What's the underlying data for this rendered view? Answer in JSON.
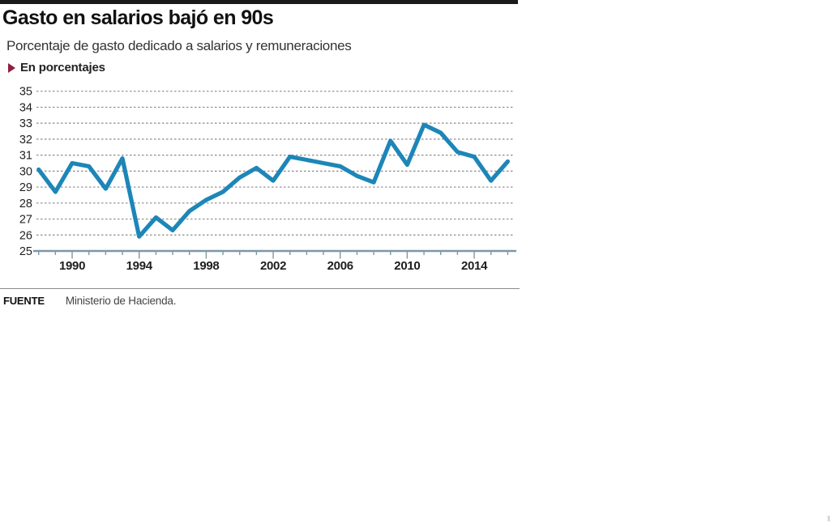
{
  "chart_data": {
    "type": "line",
    "title": "Gasto en salarios bajó en 90s",
    "subtitle": "Porcentaje de gasto dedicado a salarios y remuneraciones",
    "legend": "En porcentajes",
    "x": [
      1988,
      1989,
      1990,
      1991,
      1992,
      1993,
      1994,
      1995,
      1996,
      1997,
      1998,
      1999,
      2000,
      2001,
      2002,
      2003,
      2004,
      2005,
      2006,
      2007,
      2008,
      2009,
      2010,
      2011,
      2012,
      2013,
      2014,
      2015,
      2016
    ],
    "values": [
      30.1,
      28.7,
      30.5,
      30.3,
      28.9,
      30.8,
      25.9,
      27.1,
      26.3,
      27.5,
      28.2,
      28.7,
      29.6,
      30.2,
      29.4,
      30.9,
      30.7,
      30.5,
      30.3,
      29.7,
      29.3,
      31.9,
      30.4,
      32.9,
      32.4,
      31.2,
      30.9,
      29.4,
      30.6
    ],
    "x_tick_labels": [
      "1990",
      "1994",
      "1998",
      "2002",
      "2006",
      "2010",
      "2014"
    ],
    "y_ticks": [
      25,
      26,
      27,
      28,
      29,
      30,
      31,
      32,
      33,
      34,
      35
    ],
    "ylim": [
      25,
      35
    ],
    "grid": "horizontal-dashed",
    "legend_position": "top-left",
    "line_color": "#1d86b8",
    "axis_color": "#7d98a5",
    "grid_color": "#8a8a8a",
    "tick_label_color": "#222222",
    "legend_marker_color": "#8e2040",
    "source": {
      "label": "FUENTE",
      "text": "Ministerio de Hacienda."
    }
  }
}
